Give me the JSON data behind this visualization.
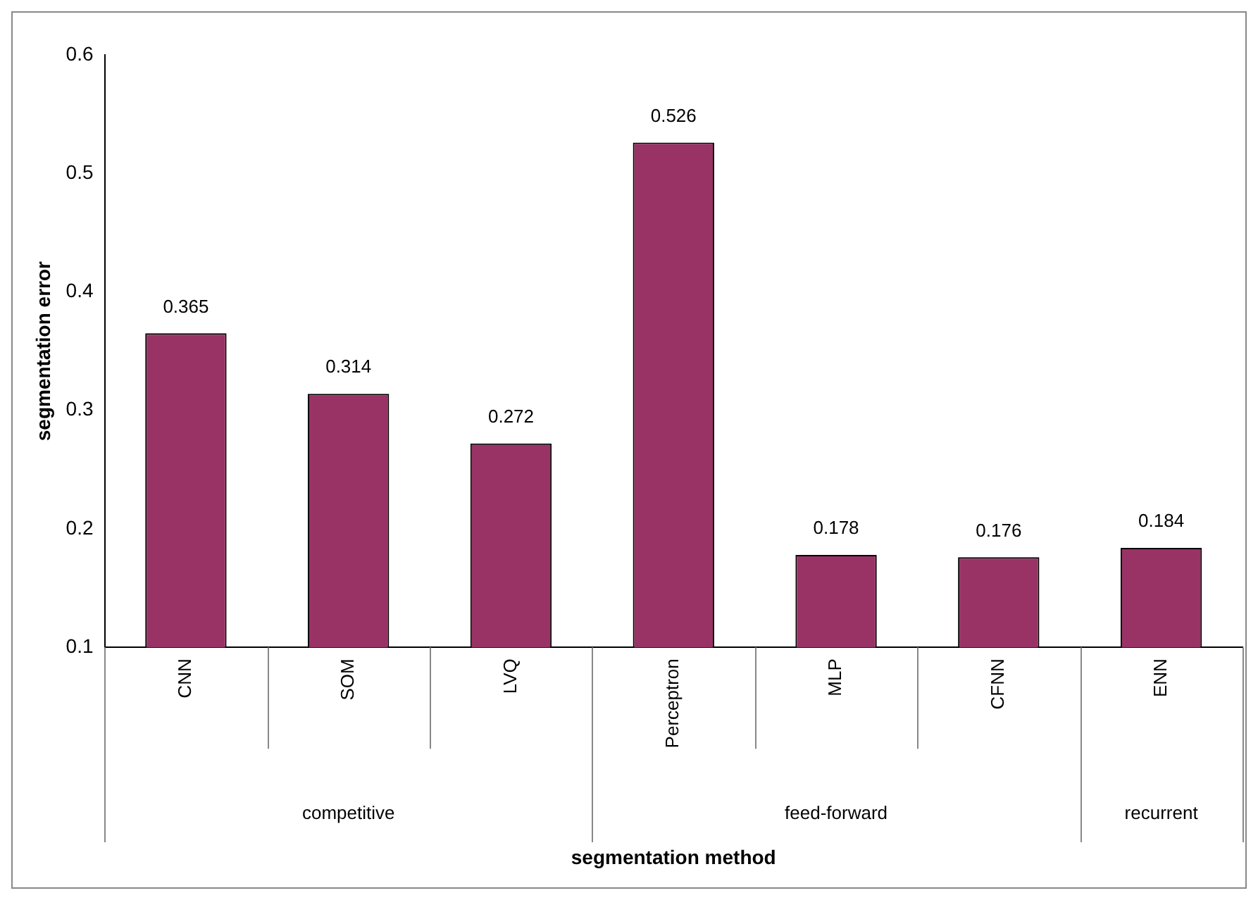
{
  "chart_data": {
    "type": "bar",
    "xlabel": "segmentation method",
    "ylabel": "segmentation error",
    "categories": [
      "CNN",
      "SOM",
      "LVQ",
      "Perceptron",
      "MLP",
      "CFNN",
      "ENN"
    ],
    "values": [
      0.365,
      0.314,
      0.272,
      0.526,
      0.178,
      0.176,
      0.184
    ],
    "color": "#993366",
    "ylim": [
      0.1,
      0.6
    ],
    "yticks": [
      0.1,
      0.2,
      0.3,
      0.4,
      0.5,
      0.6
    ],
    "grid": false,
    "legend": false,
    "data_labels": true,
    "annotations": [
      "competitive",
      "feed-forward",
      "recurrent"
    ]
  }
}
